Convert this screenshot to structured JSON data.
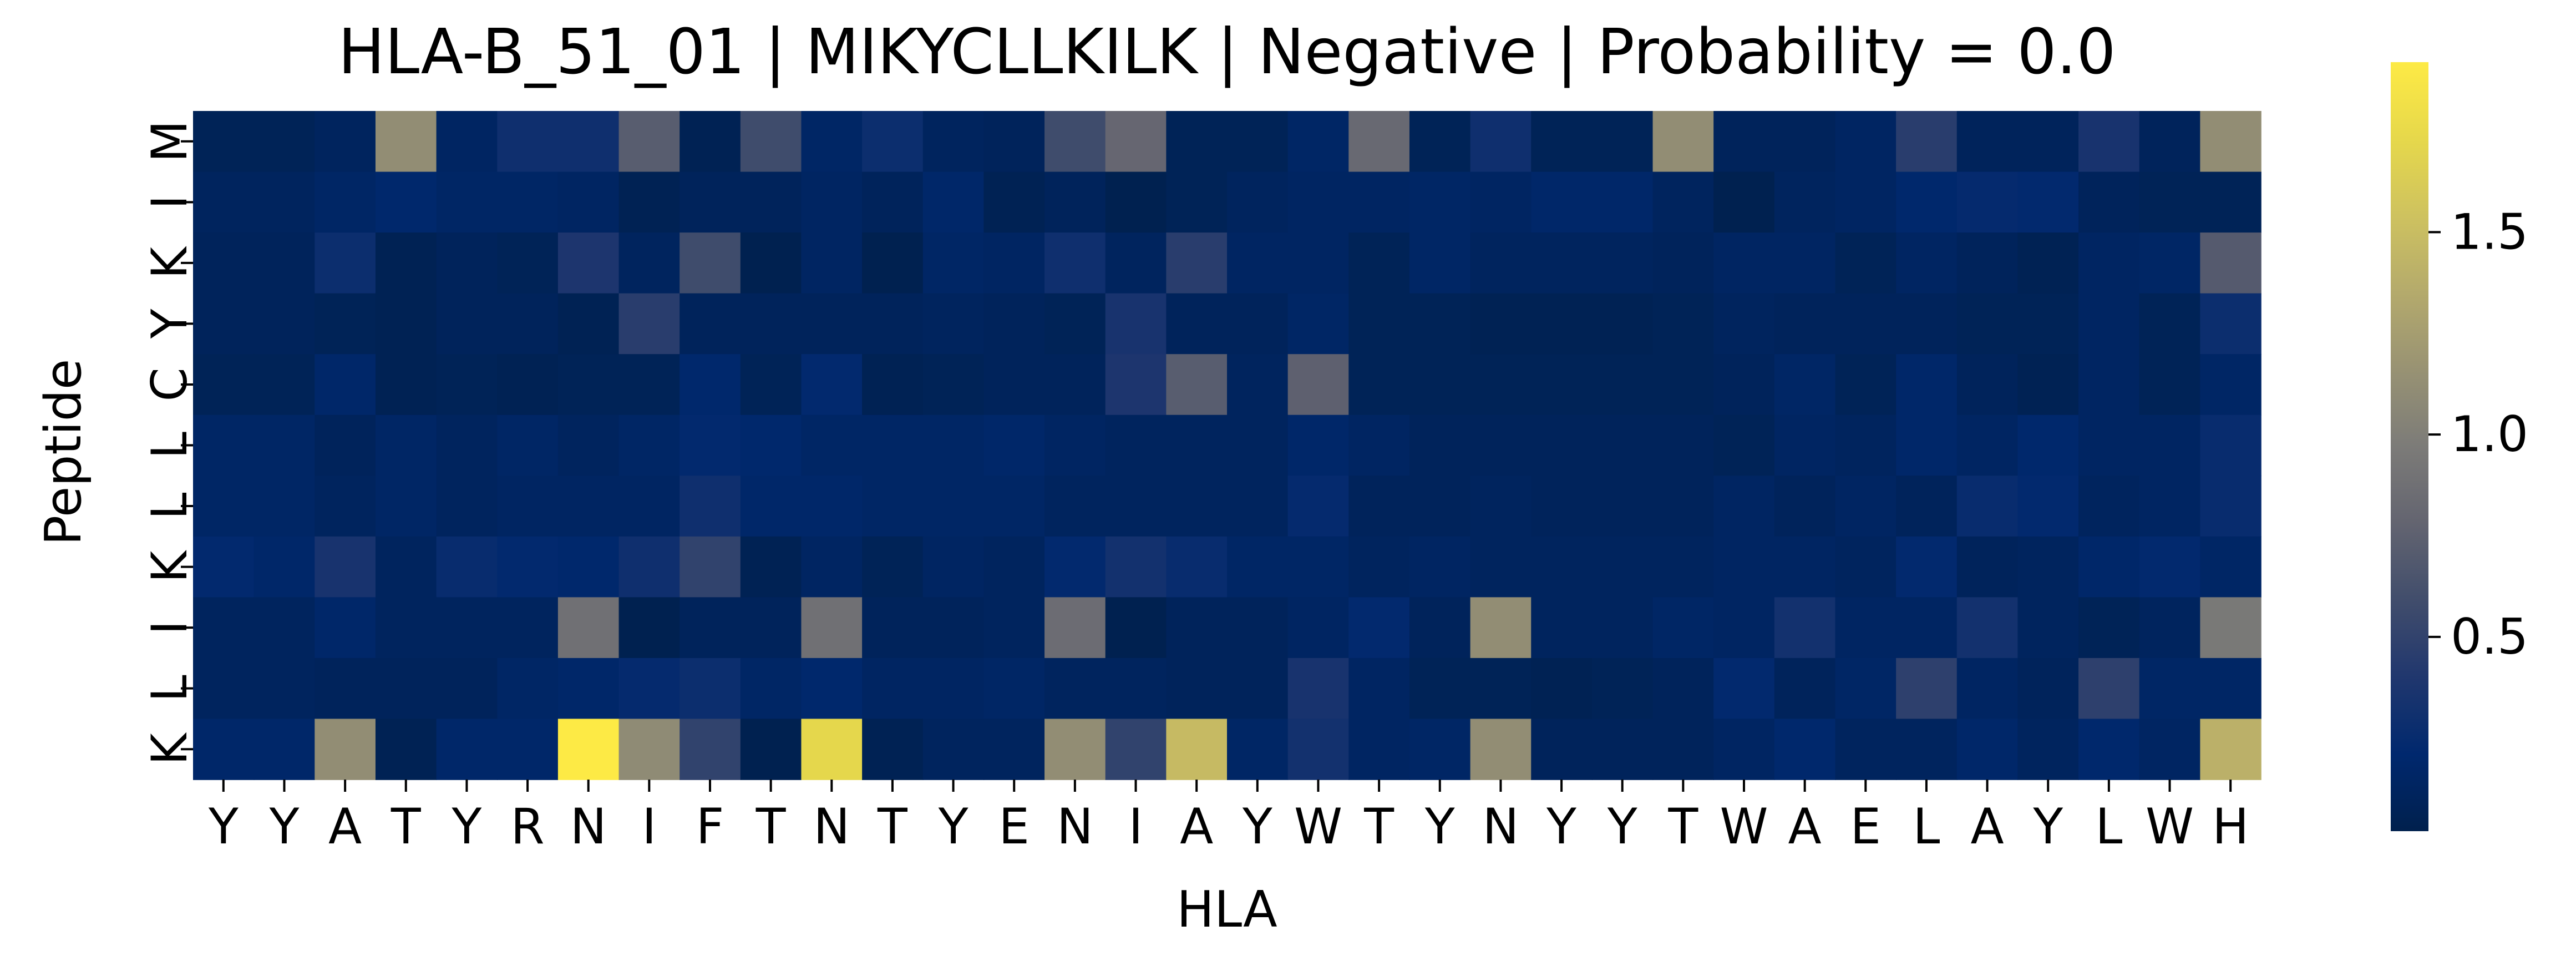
{
  "chart_data": {
    "type": "heatmap",
    "title": "HLA-B_51_01 | MIKYCLLKILK | Negative | Probability = 0.0",
    "xlabel": "HLA",
    "ylabel": "Peptide",
    "x_categories": [
      "Y",
      "Y",
      "A",
      "T",
      "Y",
      "R",
      "N",
      "I",
      "F",
      "T",
      "N",
      "T",
      "Y",
      "E",
      "N",
      "I",
      "A",
      "Y",
      "W",
      "T",
      "Y",
      "N",
      "Y",
      "Y",
      "T",
      "W",
      "A",
      "E",
      "L",
      "A",
      "Y",
      "L",
      "W",
      "H"
    ],
    "y_categories": [
      "M",
      "I",
      "K",
      "Y",
      "C",
      "L",
      "L",
      "K",
      "I",
      "L",
      "K"
    ],
    "values": [
      [
        0.08,
        0.08,
        0.12,
        1.12,
        0.14,
        0.3,
        0.3,
        0.72,
        0.06,
        0.58,
        0.16,
        0.28,
        0.12,
        0.1,
        0.58,
        0.8,
        0.08,
        0.08,
        0.16,
        0.82,
        0.08,
        0.3,
        0.08,
        0.08,
        1.12,
        0.1,
        0.1,
        0.14,
        0.45,
        0.1,
        0.1,
        0.35,
        0.1,
        1.12
      ],
      [
        0.12,
        0.12,
        0.16,
        0.2,
        0.16,
        0.16,
        0.14,
        0.06,
        0.1,
        0.1,
        0.14,
        0.1,
        0.18,
        0.06,
        0.1,
        0.04,
        0.08,
        0.12,
        0.14,
        0.14,
        0.16,
        0.14,
        0.18,
        0.18,
        0.12,
        0.04,
        0.12,
        0.14,
        0.2,
        0.24,
        0.22,
        0.1,
        0.08,
        0.08
      ],
      [
        0.1,
        0.1,
        0.28,
        0.06,
        0.1,
        0.08,
        0.38,
        0.12,
        0.58,
        0.04,
        0.14,
        0.04,
        0.16,
        0.14,
        0.3,
        0.12,
        0.45,
        0.14,
        0.14,
        0.08,
        0.16,
        0.12,
        0.12,
        0.12,
        0.1,
        0.14,
        0.14,
        0.08,
        0.14,
        0.1,
        0.06,
        0.14,
        0.16,
        0.7
      ],
      [
        0.1,
        0.1,
        0.08,
        0.06,
        0.1,
        0.1,
        0.06,
        0.45,
        0.1,
        0.1,
        0.1,
        0.1,
        0.12,
        0.1,
        0.08,
        0.35,
        0.1,
        0.1,
        0.16,
        0.08,
        0.08,
        0.06,
        0.06,
        0.06,
        0.08,
        0.12,
        0.1,
        0.1,
        0.1,
        0.08,
        0.08,
        0.14,
        0.08,
        0.28
      ],
      [
        0.08,
        0.08,
        0.18,
        0.06,
        0.08,
        0.06,
        0.08,
        0.08,
        0.2,
        0.08,
        0.22,
        0.06,
        0.08,
        0.1,
        0.1,
        0.38,
        0.72,
        0.12,
        0.75,
        0.08,
        0.08,
        0.08,
        0.08,
        0.08,
        0.08,
        0.1,
        0.16,
        0.08,
        0.18,
        0.1,
        0.06,
        0.14,
        0.08,
        0.16
      ],
      [
        0.16,
        0.16,
        0.1,
        0.16,
        0.12,
        0.16,
        0.12,
        0.16,
        0.22,
        0.2,
        0.16,
        0.16,
        0.16,
        0.18,
        0.14,
        0.12,
        0.12,
        0.12,
        0.18,
        0.14,
        0.1,
        0.1,
        0.1,
        0.1,
        0.1,
        0.08,
        0.14,
        0.12,
        0.18,
        0.14,
        0.2,
        0.14,
        0.14,
        0.26
      ],
      [
        0.16,
        0.16,
        0.12,
        0.16,
        0.12,
        0.14,
        0.14,
        0.14,
        0.3,
        0.18,
        0.18,
        0.16,
        0.16,
        0.16,
        0.12,
        0.12,
        0.12,
        0.12,
        0.24,
        0.1,
        0.1,
        0.12,
        0.1,
        0.1,
        0.1,
        0.14,
        0.1,
        0.14,
        0.1,
        0.26,
        0.22,
        0.12,
        0.14,
        0.26
      ],
      [
        0.22,
        0.18,
        0.35,
        0.12,
        0.26,
        0.22,
        0.2,
        0.3,
        0.5,
        0.06,
        0.14,
        0.08,
        0.14,
        0.12,
        0.22,
        0.32,
        0.26,
        0.16,
        0.16,
        0.12,
        0.14,
        0.12,
        0.12,
        0.12,
        0.12,
        0.14,
        0.14,
        0.12,
        0.22,
        0.1,
        0.12,
        0.18,
        0.22,
        0.16
      ],
      [
        0.12,
        0.12,
        0.18,
        0.12,
        0.12,
        0.12,
        0.88,
        0.04,
        0.1,
        0.1,
        0.88,
        0.1,
        0.1,
        0.12,
        0.85,
        0.04,
        0.1,
        0.1,
        0.14,
        0.22,
        0.1,
        1.12,
        0.12,
        0.12,
        0.16,
        0.14,
        0.32,
        0.14,
        0.14,
        0.32,
        0.12,
        0.08,
        0.12,
        0.95
      ],
      [
        0.12,
        0.12,
        0.1,
        0.1,
        0.1,
        0.16,
        0.18,
        0.24,
        0.28,
        0.16,
        0.2,
        0.14,
        0.14,
        0.16,
        0.12,
        0.12,
        0.1,
        0.1,
        0.35,
        0.14,
        0.08,
        0.08,
        0.06,
        0.08,
        0.1,
        0.22,
        0.1,
        0.16,
        0.48,
        0.14,
        0.1,
        0.48,
        0.16,
        0.16
      ],
      [
        0.18,
        0.18,
        1.12,
        0.06,
        0.18,
        0.18,
        1.92,
        1.1,
        0.5,
        0.04,
        1.72,
        0.06,
        0.12,
        0.12,
        1.12,
        0.5,
        1.48,
        0.16,
        0.32,
        0.14,
        0.16,
        1.12,
        0.1,
        0.1,
        0.1,
        0.14,
        0.2,
        0.12,
        0.12,
        0.18,
        0.12,
        0.2,
        0.14,
        1.4
      ]
    ],
    "colorbar": {
      "colormap": "cividis",
      "vmin": 0.02,
      "vmax": 1.92,
      "ticks": [
        "0.5",
        "1.0",
        "1.5"
      ],
      "tick_values": [
        0.5,
        1.0,
        1.5
      ]
    }
  }
}
